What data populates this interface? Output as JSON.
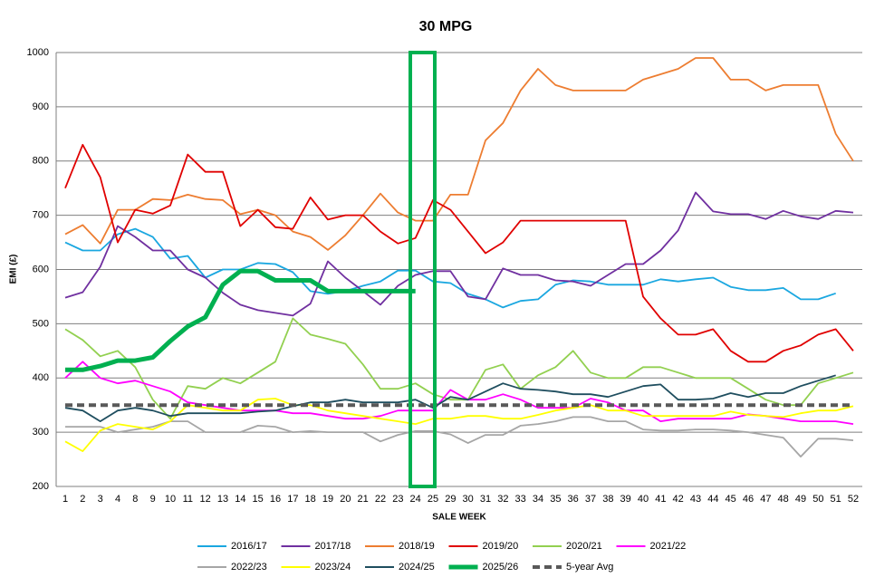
{
  "chart_data": {
    "type": "line",
    "title": "30 MPG",
    "x_label": "SALE WEEK",
    "y_label": "EMI (£)",
    "categories": [
      "1",
      "2",
      "3",
      "4",
      "8",
      "9",
      "10",
      "11",
      "12",
      "13",
      "14",
      "15",
      "16",
      "17",
      "18",
      "19",
      "20",
      "21",
      "22",
      "23",
      "24",
      "25",
      "29",
      "30",
      "31",
      "32",
      "33",
      "34",
      "35",
      "36",
      "37",
      "38",
      "39",
      "40",
      "41",
      "42",
      "43",
      "44",
      "45",
      "46",
      "47",
      "48",
      "49",
      "50",
      "51",
      "52"
    ],
    "ylim": [
      200,
      1000
    ],
    "yticks": [
      200,
      300,
      400,
      500,
      600,
      700,
      800,
      900,
      1000
    ],
    "grid": true,
    "legend": "bottom",
    "series": [
      {
        "name": "2016/17",
        "color": "#1aa7e0",
        "values": [
          650,
          635,
          635,
          665,
          675,
          660,
          620,
          625,
          585,
          600,
          600,
          612,
          610,
          595,
          560,
          555,
          560,
          570,
          578,
          598,
          598,
          578,
          575,
          555,
          545,
          530,
          542,
          545,
          572,
          580,
          578,
          572,
          572,
          572,
          582,
          578,
          582,
          585,
          568,
          562,
          562,
          566,
          545,
          545,
          556,
          null
        ]
      },
      {
        "name": "2017/18",
        "color": "#7030a0",
        "values": [
          548,
          558,
          605,
          680,
          660,
          635,
          635,
          600,
          585,
          557,
          535,
          525,
          520,
          515,
          537,
          615,
          585,
          560,
          535,
          570,
          590,
          597,
          597,
          550,
          545,
          602,
          590,
          590,
          580,
          578,
          570,
          590,
          610,
          610,
          635,
          672,
          742,
          707,
          702,
          702,
          693,
          708,
          698,
          693,
          708,
          705
        ]
      },
      {
        "name": "2018/19",
        "color": "#ed7d31",
        "values": [
          665,
          682,
          648,
          710,
          710,
          730,
          728,
          738,
          730,
          728,
          702,
          710,
          700,
          670,
          660,
          636,
          663,
          700,
          740,
          705,
          690,
          690,
          738,
          738,
          838,
          870,
          930,
          970,
          940,
          930,
          930,
          930,
          930,
          950,
          960,
          970,
          990,
          990,
          950,
          950,
          930,
          940,
          940,
          940,
          850,
          800
        ]
      },
      {
        "name": "2019/20",
        "color": "#e00000",
        "values": [
          750,
          830,
          770,
          650,
          710,
          703,
          718,
          812,
          780,
          780,
          680,
          710,
          678,
          675,
          733,
          692,
          700,
          700,
          670,
          648,
          658,
          728,
          710,
          670,
          630,
          650,
          690,
          690,
          690,
          690,
          690,
          690,
          690,
          550,
          510,
          480,
          480,
          490,
          450,
          430,
          430,
          450,
          460,
          480,
          490,
          450
        ]
      },
      {
        "name": "2020/21",
        "color": "#92d050",
        "values": [
          490,
          470,
          440,
          450,
          420,
          360,
          325,
          385,
          380,
          400,
          390,
          410,
          430,
          510,
          480,
          472,
          463,
          425,
          380,
          380,
          390,
          370,
          360,
          360,
          415,
          425,
          380,
          405,
          420,
          450,
          410,
          400,
          400,
          420,
          420,
          410,
          400,
          400,
          400,
          380,
          360,
          350,
          350,
          390,
          400,
          410
        ]
      },
      {
        "name": "2021/22",
        "color": "#ff00ff",
        "values": [
          400,
          430,
          400,
          390,
          395,
          385,
          375,
          355,
          350,
          345,
          340,
          340,
          340,
          335,
          335,
          330,
          325,
          325,
          330,
          340,
          340,
          340,
          378,
          360,
          360,
          370,
          360,
          345,
          345,
          345,
          362,
          355,
          340,
          340,
          320,
          325,
          325,
          325,
          325,
          333,
          330,
          325,
          320,
          320,
          320,
          315
        ]
      },
      {
        "name": "2022/23",
        "color": "#a6a6a6",
        "values": [
          310,
          310,
          310,
          300,
          305,
          310,
          320,
          320,
          300,
          300,
          300,
          312,
          310,
          300,
          302,
          300,
          300,
          300,
          283,
          295,
          302,
          302,
          296,
          280,
          295,
          295,
          312,
          315,
          320,
          328,
          328,
          320,
          320,
          305,
          303,
          303,
          305,
          305,
          303,
          300,
          295,
          290,
          255,
          288,
          288,
          285
        ]
      },
      {
        "name": "2023/24",
        "color": "#ffff00",
        "values": [
          283,
          265,
          303,
          315,
          310,
          305,
          320,
          350,
          345,
          340,
          340,
          360,
          362,
          350,
          350,
          340,
          335,
          330,
          325,
          320,
          315,
          325,
          325,
          330,
          330,
          325,
          325,
          332,
          340,
          345,
          350,
          340,
          340,
          330,
          330,
          330,
          330,
          330,
          338,
          332,
          330,
          328,
          335,
          340,
          340,
          348
        ]
      },
      {
        "name": "2024/25",
        "color": "#1f4e5f",
        "values": [
          345,
          340,
          320,
          340,
          345,
          340,
          330,
          335,
          335,
          335,
          335,
          338,
          340,
          348,
          355,
          355,
          360,
          355,
          355,
          355,
          360,
          345,
          365,
          360,
          375,
          390,
          380,
          378,
          375,
          370,
          370,
          365,
          375,
          385,
          388,
          360,
          360,
          362,
          372,
          365,
          372,
          372,
          385,
          395,
          405,
          null
        ]
      },
      {
        "name": "2025/26",
        "color": "#00b050",
        "line_width": 5,
        "values": [
          415,
          415,
          422,
          432,
          432,
          438,
          468,
          495,
          512,
          572,
          597,
          597,
          580,
          580,
          580,
          560,
          560,
          560,
          560,
          560,
          560,
          null,
          null,
          null,
          null,
          null,
          null,
          null,
          null,
          null,
          null,
          null,
          null,
          null,
          null,
          null,
          null,
          null,
          null,
          null,
          null,
          null,
          null,
          null,
          null,
          null
        ]
      },
      {
        "name": "5-year Avg",
        "color": "#595959",
        "line_width": 4,
        "dash": true,
        "values": [
          350,
          350,
          350,
          350,
          350,
          350,
          350,
          350,
          350,
          350,
          350,
          350,
          350,
          350,
          350,
          350,
          350,
          350,
          350,
          350,
          350,
          350,
          350,
          350,
          350,
          350,
          350,
          350,
          350,
          350,
          350,
          350,
          350,
          350,
          350,
          350,
          350,
          350,
          350,
          350,
          350,
          350,
          350,
          350,
          350,
          350
        ]
      }
    ]
  }
}
